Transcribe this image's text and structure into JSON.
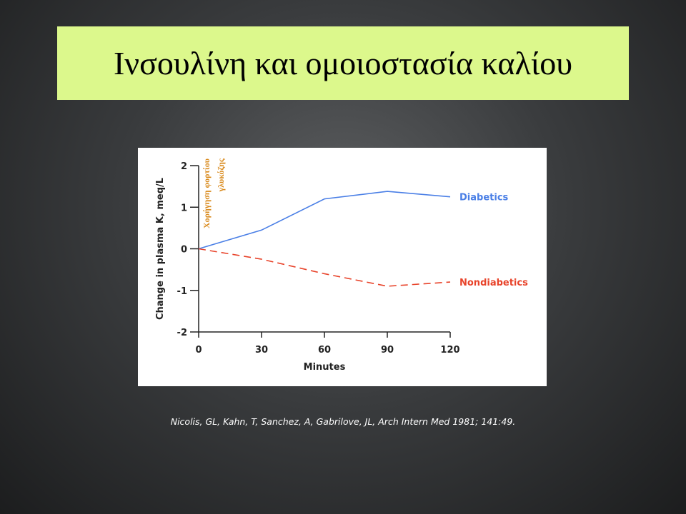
{
  "slide": {
    "title": "Ινσουλίνη και ομοιοστασία καλίου",
    "citation": "Nicolis, GL, Kahn, T, Sanchez, A, Gabrilove, JL, Arch Intern Med 1981; 141:49."
  },
  "chart_data": {
    "type": "line",
    "x_label": "Minutes",
    "y_label": "Change in plasma K, meq/L",
    "annotation_lines": [
      "Χορήγηση φορτίου",
      "γλυκόζης"
    ],
    "annotation_color": "#d98a1c",
    "x": [
      0,
      30,
      60,
      90,
      120
    ],
    "xlim": [
      0,
      120
    ],
    "xticks": [
      0,
      30,
      60,
      90,
      120
    ],
    "ylim": [
      -2,
      2
    ],
    "yticks": [
      -2,
      -1,
      0,
      1,
      2
    ],
    "series": [
      {
        "name": "Diabetics",
        "color": "#4a7fe6",
        "dashed": false,
        "values": [
          0,
          0.45,
          1.2,
          1.38,
          1.25
        ]
      },
      {
        "name": "Nondiabetics",
        "color": "#e8432a",
        "dashed": true,
        "values": [
          0,
          -0.25,
          -0.6,
          -0.9,
          -0.8
        ]
      }
    ]
  }
}
